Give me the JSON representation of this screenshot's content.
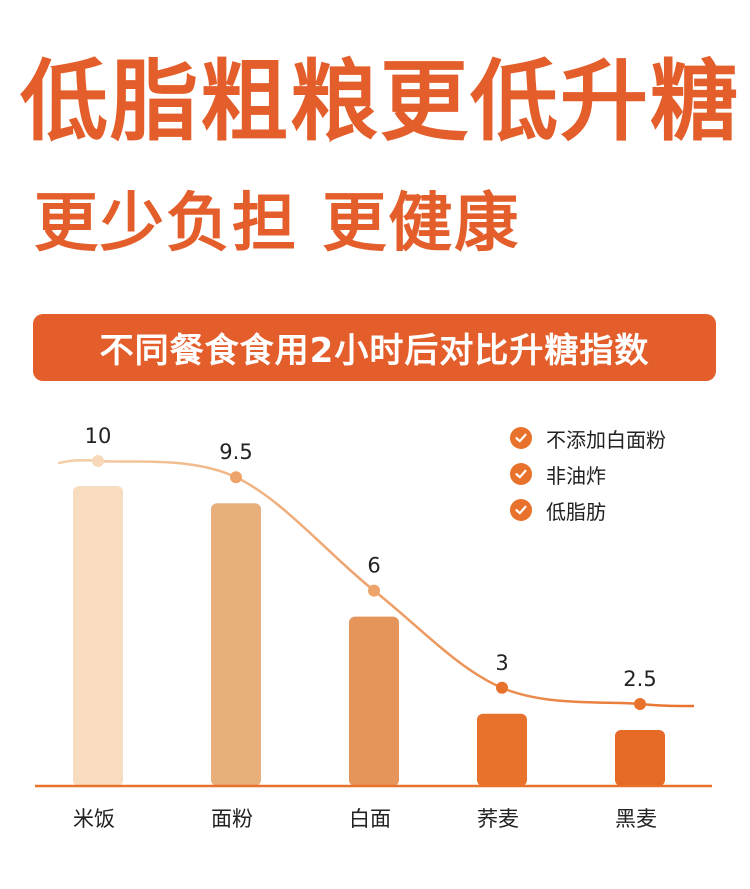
{
  "headline": "低脂粗粮更低升糖",
  "subheadline": "更少负担 更健康",
  "banner": "不同餐食食用2小时后对比升糖指数",
  "legend": {
    "items": [
      {
        "label": "不添加白面粉",
        "icon": "check-circle-icon"
      },
      {
        "label": "非油炸",
        "icon": "check-circle-icon"
      },
      {
        "label": "低脂肪",
        "icon": "check-circle-icon"
      }
    ]
  },
  "colors": {
    "accent": "#e45e2b",
    "bars": [
      "#f8dcc0",
      "#e7b07a",
      "#e6955a",
      "#e8722c",
      "#e66a26"
    ],
    "curve_start": "#f3cfa8",
    "curve_end": "#e8722c"
  },
  "chart_data": {
    "type": "bar",
    "categories": [
      "米饭",
      "面粉",
      "白面",
      "荞麦",
      "黑麦"
    ],
    "values": [
      10,
      9.5,
      6,
      3,
      2.5
    ],
    "value_labels": [
      "10",
      "9.5",
      "6",
      "3",
      "2.5"
    ],
    "title": "",
    "xlabel": "",
    "ylabel": "",
    "ylim": [
      0,
      11
    ],
    "grid": false,
    "overlay": "smooth-line"
  }
}
